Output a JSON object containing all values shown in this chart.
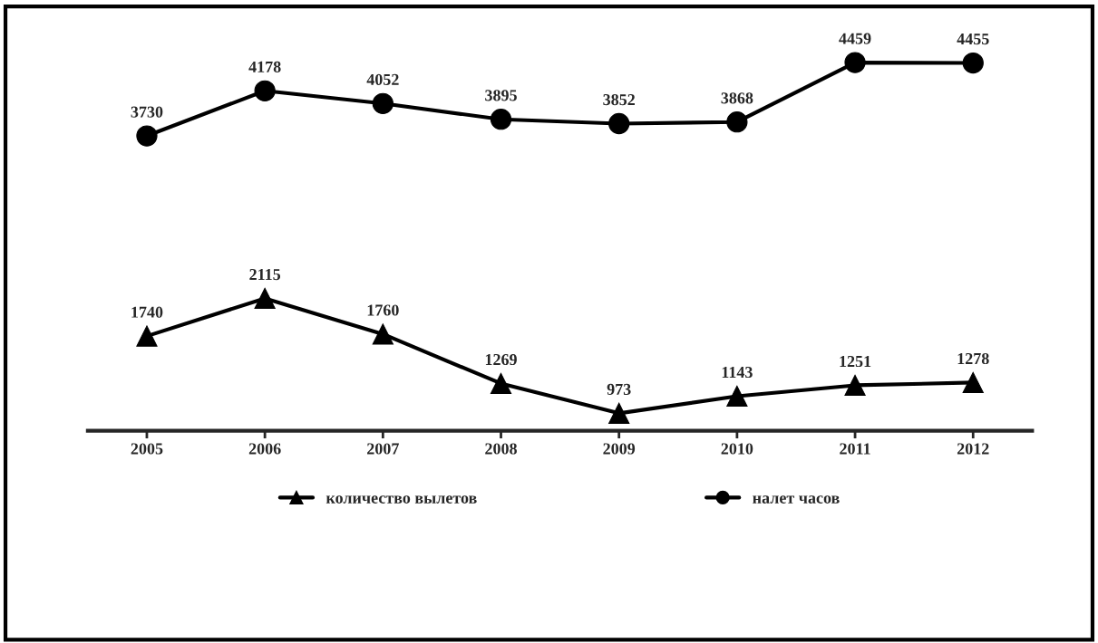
{
  "chart_data": {
    "type": "line",
    "categories": [
      "2005",
      "2006",
      "2007",
      "2008",
      "2009",
      "2010",
      "2011",
      "2012"
    ],
    "series": [
      {
        "name": "количество вылетов",
        "color": "#000000",
        "marker": "triangle",
        "values": [
          1740,
          2115,
          1760,
          1269,
          973,
          1143,
          1251,
          1278
        ]
      },
      {
        "name": "налет часов",
        "color": "#000000",
        "marker": "circle",
        "values": [
          3730,
          4178,
          4052,
          3895,
          3852,
          3868,
          4459,
          4455
        ]
      }
    ],
    "data_labels": true,
    "tick_labels": "x",
    "grid": false,
    "legend": "bottom"
  }
}
